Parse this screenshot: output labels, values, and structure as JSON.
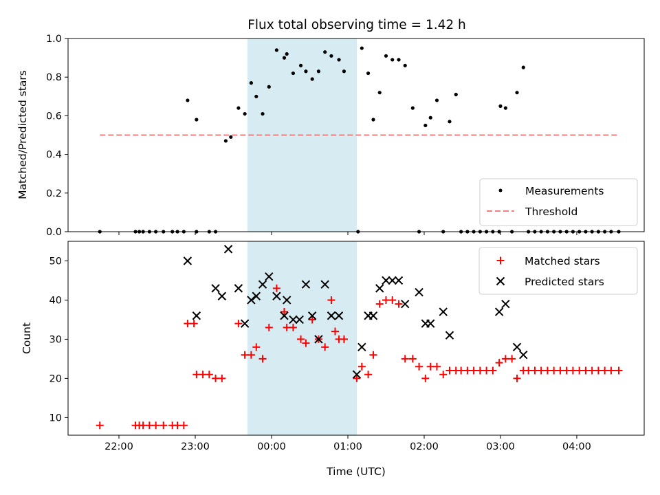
{
  "title": "Flux total observing time = 1.42 h",
  "xlabel": "Time (UTC)",
  "colors": {
    "shade": "#add8e6",
    "measurement": "#000000",
    "threshold": "#f08080",
    "matched": "#ff0000",
    "predicted": "#000000"
  },
  "chart_data": [
    {
      "type": "scatter",
      "ylabel": "Matched/Predicted stars",
      "ylim": [
        0,
        1.0
      ],
      "yticks": [
        "0.0",
        "0.2",
        "0.4",
        "0.6",
        "0.8",
        "1.0"
      ],
      "shaded_interval": [
        "23:41",
        "01:07"
      ],
      "legend": [
        "Measurements",
        "Threshold"
      ],
      "legend_position": "lower right",
      "threshold": {
        "name": "Threshold",
        "value": 0.5,
        "x": [
          "21:45",
          "04:33"
        ]
      },
      "measurements": [
        [
          "21:45",
          0
        ],
        [
          "22:13",
          0
        ],
        [
          "22:16",
          0
        ],
        [
          "22:19",
          0
        ],
        [
          "22:24",
          0
        ],
        [
          "22:29",
          0
        ],
        [
          "22:35",
          0
        ],
        [
          "22:42",
          0
        ],
        [
          "22:46",
          0
        ],
        [
          "22:51",
          0
        ],
        [
          "22:54",
          0.68
        ],
        [
          "23:01",
          0
        ],
        [
          "23:01",
          0.58
        ],
        [
          "23:11",
          0
        ],
        [
          "23:16",
          0
        ],
        [
          "23:24",
          0.47
        ],
        [
          "23:28",
          0.49
        ],
        [
          "23:34",
          0.64
        ],
        [
          "23:39",
          0.61
        ],
        [
          "23:44",
          0.77
        ],
        [
          "23:48",
          0.7
        ],
        [
          "23:53",
          0.61
        ],
        [
          "23:58",
          0.75
        ],
        [
          "00:04",
          0.94
        ],
        [
          "00:10",
          0.9
        ],
        [
          "00:12",
          0.92
        ],
        [
          "00:17",
          0.82
        ],
        [
          "00:23",
          0.86
        ],
        [
          "00:27",
          0.83
        ],
        [
          "00:32",
          0.79
        ],
        [
          "00:37",
          0.83
        ],
        [
          "00:42",
          0.93
        ],
        [
          "00:47",
          0.91
        ],
        [
          "00:53",
          0.89
        ],
        [
          "00:57",
          0.83
        ],
        [
          "01:08",
          0
        ],
        [
          "01:11",
          0.95
        ],
        [
          "01:16",
          0.82
        ],
        [
          "01:20",
          0.58
        ],
        [
          "01:25",
          0.72
        ],
        [
          "01:30",
          0.91
        ],
        [
          "01:35",
          0.89
        ],
        [
          "01:40",
          0.89
        ],
        [
          "01:45",
          0.86
        ],
        [
          "01:51",
          0.64
        ],
        [
          "01:56",
          0
        ],
        [
          "02:01",
          0.55
        ],
        [
          "02:05",
          0.59
        ],
        [
          "02:10",
          0.68
        ],
        [
          "02:15",
          0
        ],
        [
          "02:20",
          0.57
        ],
        [
          "02:25",
          0.71
        ],
        [
          "02:29",
          0
        ],
        [
          "02:34",
          0
        ],
        [
          "02:39",
          0
        ],
        [
          "02:44",
          0
        ],
        [
          "02:49",
          0
        ],
        [
          "02:54",
          0
        ],
        [
          "02:59",
          0
        ],
        [
          "03:00",
          0.65
        ],
        [
          "03:04",
          0.64
        ],
        [
          "03:09",
          0
        ],
        [
          "03:13",
          0.72
        ],
        [
          "03:18",
          0.85
        ],
        [
          "03:22",
          0
        ],
        [
          "03:27",
          0
        ],
        [
          "03:32",
          0
        ],
        [
          "03:37",
          0
        ],
        [
          "03:42",
          0
        ],
        [
          "03:47",
          0
        ],
        [
          "03:52",
          0
        ],
        [
          "03:57",
          0
        ],
        [
          "04:02",
          0
        ],
        [
          "04:07",
          0
        ],
        [
          "04:12",
          0
        ],
        [
          "04:17",
          0
        ],
        [
          "04:22",
          0
        ],
        [
          "04:27",
          0
        ],
        [
          "04:33",
          0
        ]
      ]
    },
    {
      "type": "scatter",
      "ylabel": "Count",
      "ylim": [
        5.5,
        55
      ],
      "yticks": [
        "10",
        "20",
        "30",
        "40",
        "50"
      ],
      "xticks": [
        "22:00",
        "23:00",
        "00:00",
        "01:00",
        "02:00",
        "03:00",
        "04:00"
      ],
      "legend": [
        "Matched stars",
        "Predicted stars"
      ],
      "legend_position": "upper right",
      "matched": [
        [
          "21:45",
          8
        ],
        [
          "22:13",
          8
        ],
        [
          "22:16",
          8
        ],
        [
          "22:19",
          8
        ],
        [
          "22:24",
          8
        ],
        [
          "22:29",
          8
        ],
        [
          "22:35",
          8
        ],
        [
          "22:42",
          8
        ],
        [
          "22:46",
          8
        ],
        [
          "22:51",
          8
        ],
        [
          "22:54",
          34
        ],
        [
          "22:59",
          34
        ],
        [
          "23:01",
          21
        ],
        [
          "23:06",
          21
        ],
        [
          "23:11",
          21
        ],
        [
          "23:16",
          20
        ],
        [
          "23:21",
          20
        ],
        [
          "23:34",
          34
        ],
        [
          "23:39",
          26
        ],
        [
          "23:44",
          26
        ],
        [
          "23:48",
          28
        ],
        [
          "23:53",
          25
        ],
        [
          "23:58",
          33
        ],
        [
          "00:04",
          43
        ],
        [
          "00:10",
          37
        ],
        [
          "00:12",
          33
        ],
        [
          "00:17",
          33
        ],
        [
          "00:23",
          30
        ],
        [
          "00:27",
          29
        ],
        [
          "00:32",
          35
        ],
        [
          "00:37",
          30
        ],
        [
          "00:42",
          28
        ],
        [
          "00:47",
          40
        ],
        [
          "00:50",
          32
        ],
        [
          "00:53",
          30
        ],
        [
          "00:57",
          30
        ],
        [
          "01:07",
          20
        ],
        [
          "01:11",
          23
        ],
        [
          "01:16",
          21
        ],
        [
          "01:20",
          26
        ],
        [
          "01:25",
          39
        ],
        [
          "01:30",
          40
        ],
        [
          "01:35",
          40
        ],
        [
          "01:40",
          39
        ],
        [
          "01:45",
          25
        ],
        [
          "01:51",
          25
        ],
        [
          "01:56",
          23
        ],
        [
          "02:01",
          20
        ],
        [
          "02:05",
          23
        ],
        [
          "02:10",
          23
        ],
        [
          "02:15",
          21
        ],
        [
          "02:20",
          22
        ],
        [
          "02:25",
          22
        ],
        [
          "02:29",
          22
        ],
        [
          "02:34",
          22
        ],
        [
          "02:39",
          22
        ],
        [
          "02:44",
          22
        ],
        [
          "02:49",
          22
        ],
        [
          "02:54",
          22
        ],
        [
          "02:59",
          24
        ],
        [
          "03:04",
          25
        ],
        [
          "03:09",
          25
        ],
        [
          "03:13",
          20
        ],
        [
          "03:18",
          22
        ],
        [
          "03:22",
          22
        ],
        [
          "03:27",
          22
        ],
        [
          "03:32",
          22
        ],
        [
          "03:37",
          22
        ],
        [
          "03:42",
          22
        ],
        [
          "03:47",
          22
        ],
        [
          "03:52",
          22
        ],
        [
          "03:57",
          22
        ],
        [
          "04:02",
          22
        ],
        [
          "04:07",
          22
        ],
        [
          "04:12",
          22
        ],
        [
          "04:17",
          22
        ],
        [
          "04:22",
          22
        ],
        [
          "04:27",
          22
        ],
        [
          "04:33",
          22
        ]
      ],
      "predicted": [
        [
          "22:54",
          50
        ],
        [
          "23:01",
          36
        ],
        [
          "23:16",
          43
        ],
        [
          "23:21",
          41
        ],
        [
          "23:26",
          53
        ],
        [
          "23:34",
          43
        ],
        [
          "23:39",
          34
        ],
        [
          "23:44",
          40
        ],
        [
          "23:48",
          41
        ],
        [
          "23:53",
          44
        ],
        [
          "23:58",
          46
        ],
        [
          "00:04",
          41
        ],
        [
          "00:10",
          36
        ],
        [
          "00:12",
          40
        ],
        [
          "00:17",
          35
        ],
        [
          "00:22",
          35
        ],
        [
          "00:27",
          44
        ],
        [
          "00:32",
          36
        ],
        [
          "00:37",
          30
        ],
        [
          "00:42",
          44
        ],
        [
          "00:47",
          36
        ],
        [
          "00:53",
          36
        ],
        [
          "01:07",
          21
        ],
        [
          "01:11",
          28
        ],
        [
          "01:16",
          36
        ],
        [
          "01:20",
          36
        ],
        [
          "01:25",
          43
        ],
        [
          "01:30",
          45
        ],
        [
          "01:35",
          45
        ],
        [
          "01:40",
          45
        ],
        [
          "01:45",
          39
        ],
        [
          "01:56",
          42
        ],
        [
          "02:01",
          34
        ],
        [
          "02:05",
          34
        ],
        [
          "02:15",
          37
        ],
        [
          "02:20",
          31
        ],
        [
          "02:59",
          37
        ],
        [
          "03:04",
          39
        ],
        [
          "03:13",
          28
        ],
        [
          "03:18",
          26
        ]
      ]
    }
  ]
}
